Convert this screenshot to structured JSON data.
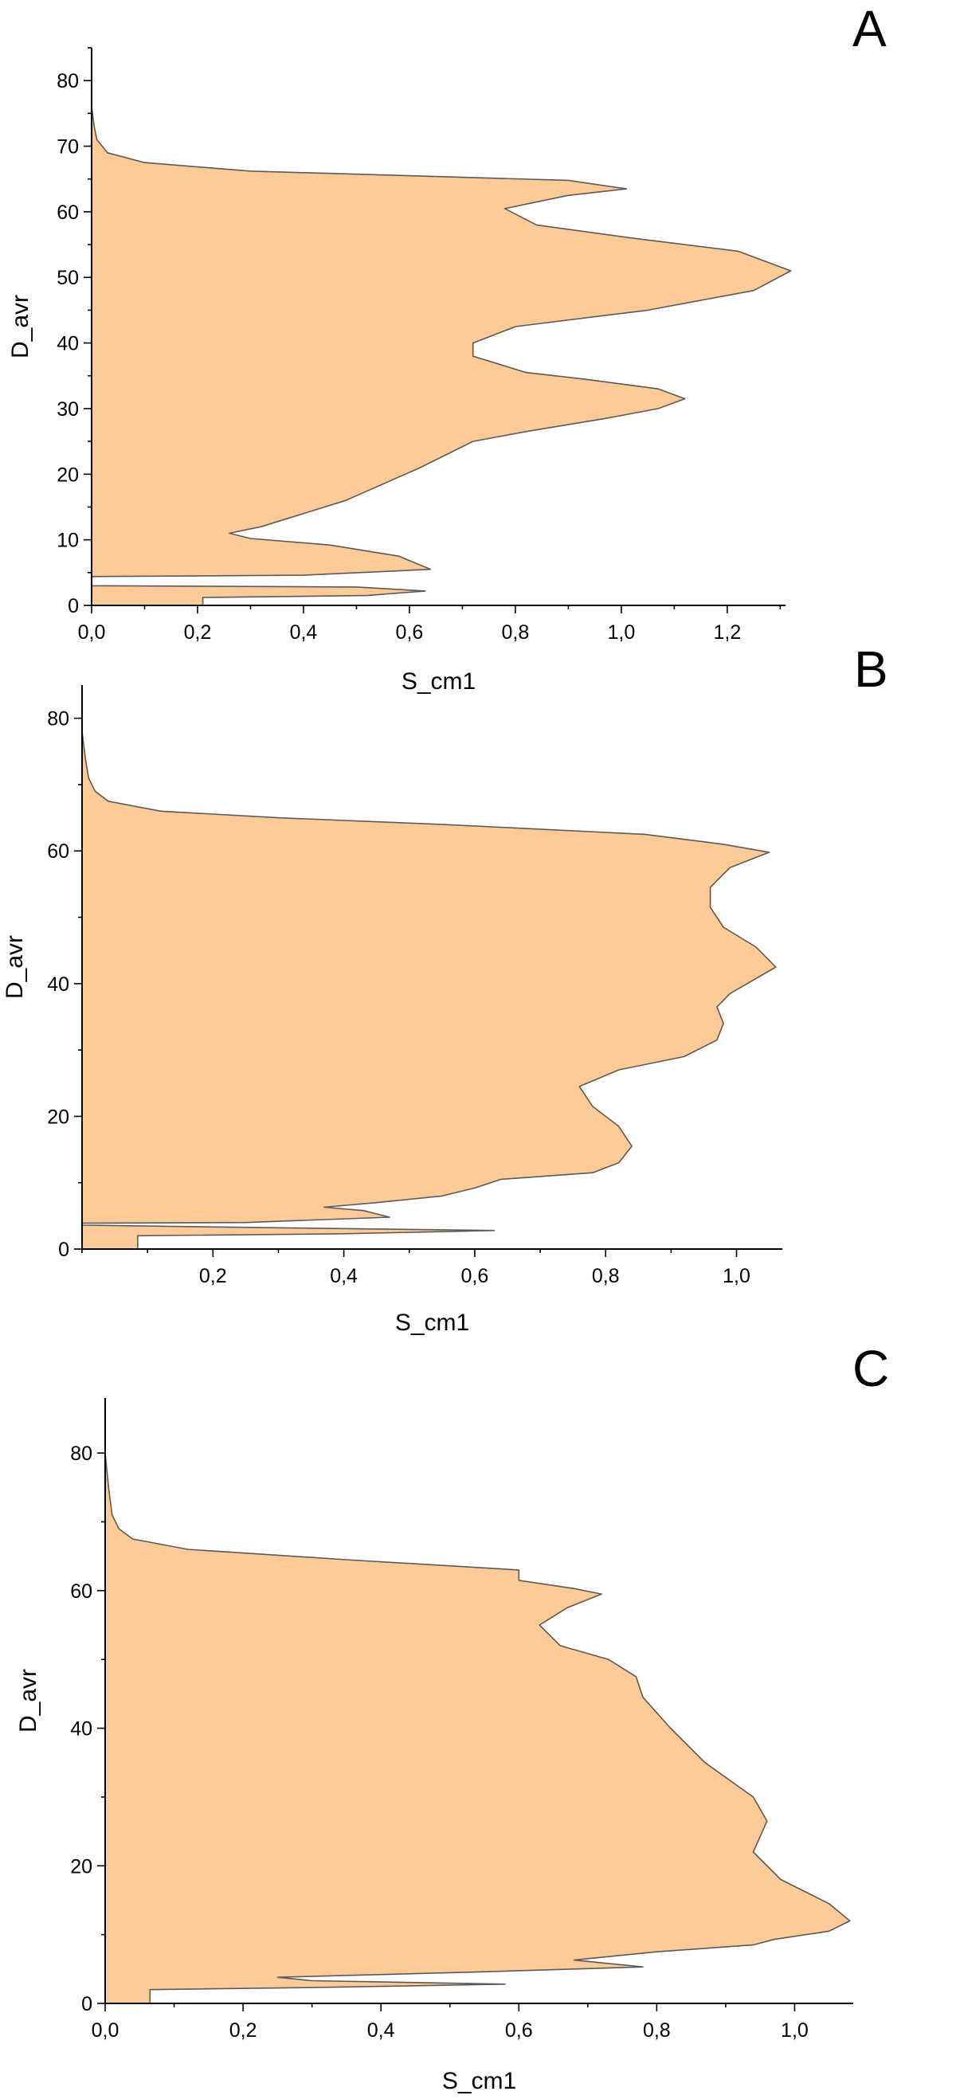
{
  "chart_data": [
    {
      "panel": "A",
      "type": "area",
      "orientation": "horizontal",
      "xlabel": "S_cm1",
      "ylabel": "D_avr",
      "xlim": [
        0,
        1.31
      ],
      "ylim": [
        0,
        85
      ],
      "x_ticks": [
        0,
        0.2,
        0.4,
        0.6,
        0.8,
        1.0,
        1.2
      ],
      "x_tick_labels": [
        "0,0",
        "0,2",
        "0,4",
        "0,6",
        "0,8",
        "1,0",
        "1,2"
      ],
      "y_ticks": [
        0,
        10,
        20,
        30,
        40,
        50,
        60,
        70,
        80
      ],
      "y_tick_labels": [
        "0",
        "10",
        "20",
        "30",
        "40",
        "50",
        "60",
        "70",
        "80"
      ],
      "fill_color": "#fccb98",
      "line_color": "#5a5a5a",
      "series": [
        {
          "values": [
            [
              0.21,
              0
            ],
            [
              0.21,
              1.2
            ],
            [
              0.52,
              1.5
            ],
            [
              0.63,
              2.2
            ],
            [
              0.5,
              2.8
            ],
            [
              0.0,
              3.0
            ],
            [
              0.0,
              4.4
            ],
            [
              0.4,
              4.6
            ],
            [
              0.64,
              5.5
            ],
            [
              0.58,
              7.5
            ],
            [
              0.45,
              9.2
            ],
            [
              0.3,
              10.2
            ],
            [
              0.26,
              11.0
            ],
            [
              0.32,
              12.0
            ],
            [
              0.48,
              16.0
            ],
            [
              0.62,
              21.0
            ],
            [
              0.72,
              25.0
            ],
            [
              0.82,
              26.5
            ],
            [
              0.97,
              28.5
            ],
            [
              1.07,
              30.0
            ],
            [
              1.12,
              31.5
            ],
            [
              1.07,
              33.0
            ],
            [
              0.93,
              34.5
            ],
            [
              0.82,
              35.5
            ],
            [
              0.72,
              38.0
            ],
            [
              0.72,
              40.0
            ],
            [
              0.8,
              42.5
            ],
            [
              1.05,
              45.0
            ],
            [
              1.25,
              48.0
            ],
            [
              1.32,
              51.0
            ],
            [
              1.22,
              54.0
            ],
            [
              1.02,
              56.0
            ],
            [
              0.84,
              58.0
            ],
            [
              0.78,
              60.5
            ],
            [
              0.9,
              62.5
            ],
            [
              1.01,
              63.5
            ],
            [
              0.9,
              64.8
            ],
            [
              0.6,
              65.5
            ],
            [
              0.3,
              66.2
            ],
            [
              0.1,
              67.5
            ],
            [
              0.03,
              69.0
            ],
            [
              0.01,
              71.0
            ],
            [
              0.005,
              73.0
            ],
            [
              0.0,
              76.0
            ]
          ]
        }
      ]
    },
    {
      "panel": "B",
      "type": "area",
      "orientation": "horizontal",
      "xlabel": "S_cm1",
      "ylabel": "D_avr",
      "xlim": [
        0,
        1.07
      ],
      "ylim": [
        0,
        85
      ],
      "x_ticks": [
        0.2,
        0.4,
        0.6,
        0.8,
        1.0
      ],
      "x_tick_labels": [
        "0,2",
        "0,4",
        "0,6",
        "0,8",
        "1,0"
      ],
      "y_ticks": [
        0,
        20,
        40,
        60,
        80
      ],
      "y_tick_labels": [
        "0",
        "20",
        "40",
        "60",
        "80"
      ],
      "fill_color": "#fccb98",
      "line_color": "#5a5a5a",
      "series": [
        {
          "values": [
            [
              0.085,
              0
            ],
            [
              0.085,
              2.0
            ],
            [
              0.4,
              2.3
            ],
            [
              0.63,
              2.8
            ],
            [
              0.3,
              3.2
            ],
            [
              0.0,
              3.6
            ],
            [
              0.0,
              3.9
            ],
            [
              0.25,
              4.0
            ],
            [
              0.47,
              4.8
            ],
            [
              0.43,
              5.8
            ],
            [
              0.37,
              6.3
            ],
            [
              0.45,
              7.0
            ],
            [
              0.55,
              8.0
            ],
            [
              0.6,
              9.2
            ],
            [
              0.64,
              10.5
            ],
            [
              0.78,
              11.5
            ],
            [
              0.82,
              13.0
            ],
            [
              0.84,
              15.5
            ],
            [
              0.82,
              18.5
            ],
            [
              0.78,
              21.5
            ],
            [
              0.76,
              24.5
            ],
            [
              0.82,
              27.0
            ],
            [
              0.92,
              29.0
            ],
            [
              0.97,
              31.5
            ],
            [
              0.98,
              34.0
            ],
            [
              0.97,
              36.5
            ],
            [
              0.99,
              38.5
            ],
            [
              1.06,
              42.5
            ],
            [
              1.03,
              45.5
            ],
            [
              0.98,
              48.5
            ],
            [
              0.96,
              51.5
            ],
            [
              0.96,
              54.5
            ],
            [
              0.99,
              57.5
            ],
            [
              1.05,
              59.8
            ],
            [
              0.98,
              61.0
            ],
            [
              0.86,
              62.5
            ],
            [
              0.55,
              64.0
            ],
            [
              0.3,
              65.0
            ],
            [
              0.12,
              66.0
            ],
            [
              0.04,
              67.5
            ],
            [
              0.02,
              69.0
            ],
            [
              0.01,
              71.0
            ],
            [
              0.005,
              74.0
            ],
            [
              0.0,
              78.0
            ]
          ]
        }
      ]
    },
    {
      "panel": "C",
      "type": "area",
      "orientation": "horizontal",
      "xlabel": "S_cm1",
      "ylabel": "D_avr",
      "xlim": [
        0,
        1.085
      ],
      "ylim": [
        0,
        88
      ],
      "x_ticks": [
        0,
        0.2,
        0.4,
        0.6,
        0.8,
        1.0
      ],
      "x_tick_labels": [
        "0,0",
        "0,2",
        "0,4",
        "0,6",
        "0,8",
        "1,0"
      ],
      "y_ticks": [
        0,
        20,
        40,
        60,
        80
      ],
      "y_tick_labels": [
        "0",
        "20",
        "40",
        "60",
        "80"
      ],
      "fill_color": "#fccb98",
      "line_color": "#5a5a5a",
      "series": [
        {
          "values": [
            [
              0.065,
              0
            ],
            [
              0.065,
              2.0
            ],
            [
              0.3,
              2.3
            ],
            [
              0.58,
              2.8
            ],
            [
              0.3,
              3.3
            ],
            [
              0.25,
              3.8
            ],
            [
              0.55,
              4.6
            ],
            [
              0.78,
              5.3
            ],
            [
              0.68,
              6.3
            ],
            [
              0.8,
              7.5
            ],
            [
              0.94,
              8.5
            ],
            [
              0.97,
              9.3
            ],
            [
              1.05,
              10.5
            ],
            [
              1.08,
              12.0
            ],
            [
              1.05,
              14.5
            ],
            [
              0.98,
              18.0
            ],
            [
              0.94,
              22.0
            ],
            [
              0.96,
              26.5
            ],
            [
              0.94,
              30.0
            ],
            [
              0.87,
              35.0
            ],
            [
              0.82,
              40.0
            ],
            [
              0.78,
              44.5
            ],
            [
              0.77,
              47.5
            ],
            [
              0.73,
              50.0
            ],
            [
              0.66,
              52.0
            ],
            [
              0.63,
              55.0
            ],
            [
              0.67,
              57.5
            ],
            [
              0.72,
              59.5
            ],
            [
              0.68,
              60.3
            ],
            [
              0.6,
              61.5
            ],
            [
              0.6,
              63.0
            ],
            [
              0.35,
              64.5
            ],
            [
              0.12,
              66.0
            ],
            [
              0.04,
              67.5
            ],
            [
              0.02,
              69.0
            ],
            [
              0.01,
              71.0
            ],
            [
              0.005,
              75.0
            ],
            [
              0.0,
              80.0
            ]
          ]
        }
      ]
    }
  ]
}
